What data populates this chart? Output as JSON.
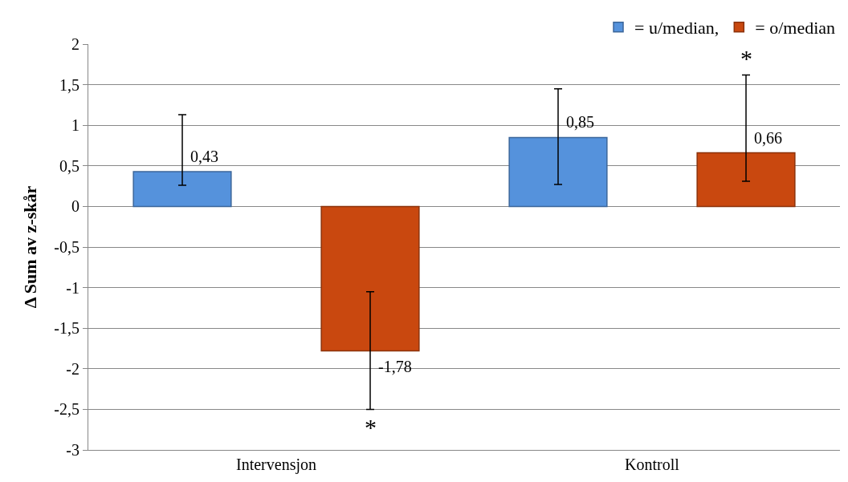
{
  "chart_data": {
    "type": "bar",
    "ylabel": "Δ Sum av z-skår",
    "categories": [
      "Intervensjon",
      "Kontroll"
    ],
    "series": [
      {
        "name": "= u/median,",
        "color": "#5592dc",
        "values": [
          0.43,
          0.85
        ],
        "errors": [
          [
            0.26,
            1.13
          ],
          [
            0.27,
            1.45
          ]
        ],
        "value_labels": [
          "0,43",
          "0,85"
        ]
      },
      {
        "name": "= o/median",
        "color": "#c9480f",
        "values": [
          -1.78,
          0.66
        ],
        "errors": [
          [
            -2.5,
            -1.05
          ],
          [
            0.31,
            1.62
          ]
        ],
        "value_labels": [
          "-1,78",
          "0,66"
        ]
      }
    ],
    "annotations": [
      "*",
      "*"
    ],
    "ylim": [
      -3,
      2
    ],
    "yticks": [
      {
        "value": -3,
        "label": "-3"
      },
      {
        "value": -2.5,
        "label": "-2,5"
      },
      {
        "value": -2,
        "label": "-2"
      },
      {
        "value": -1.5,
        "label": "-1,5"
      },
      {
        "value": -1,
        "label": "-1"
      },
      {
        "value": -0.5,
        "label": "-0,5"
      },
      {
        "value": 0,
        "label": "0"
      },
      {
        "value": 0.5,
        "label": "0,5"
      },
      {
        "value": 1,
        "label": "1"
      },
      {
        "value": 1.5,
        "label": "1,5"
      },
      {
        "value": 2,
        "label": "2"
      }
    ],
    "grid": "y",
    "legend": "top right"
  }
}
